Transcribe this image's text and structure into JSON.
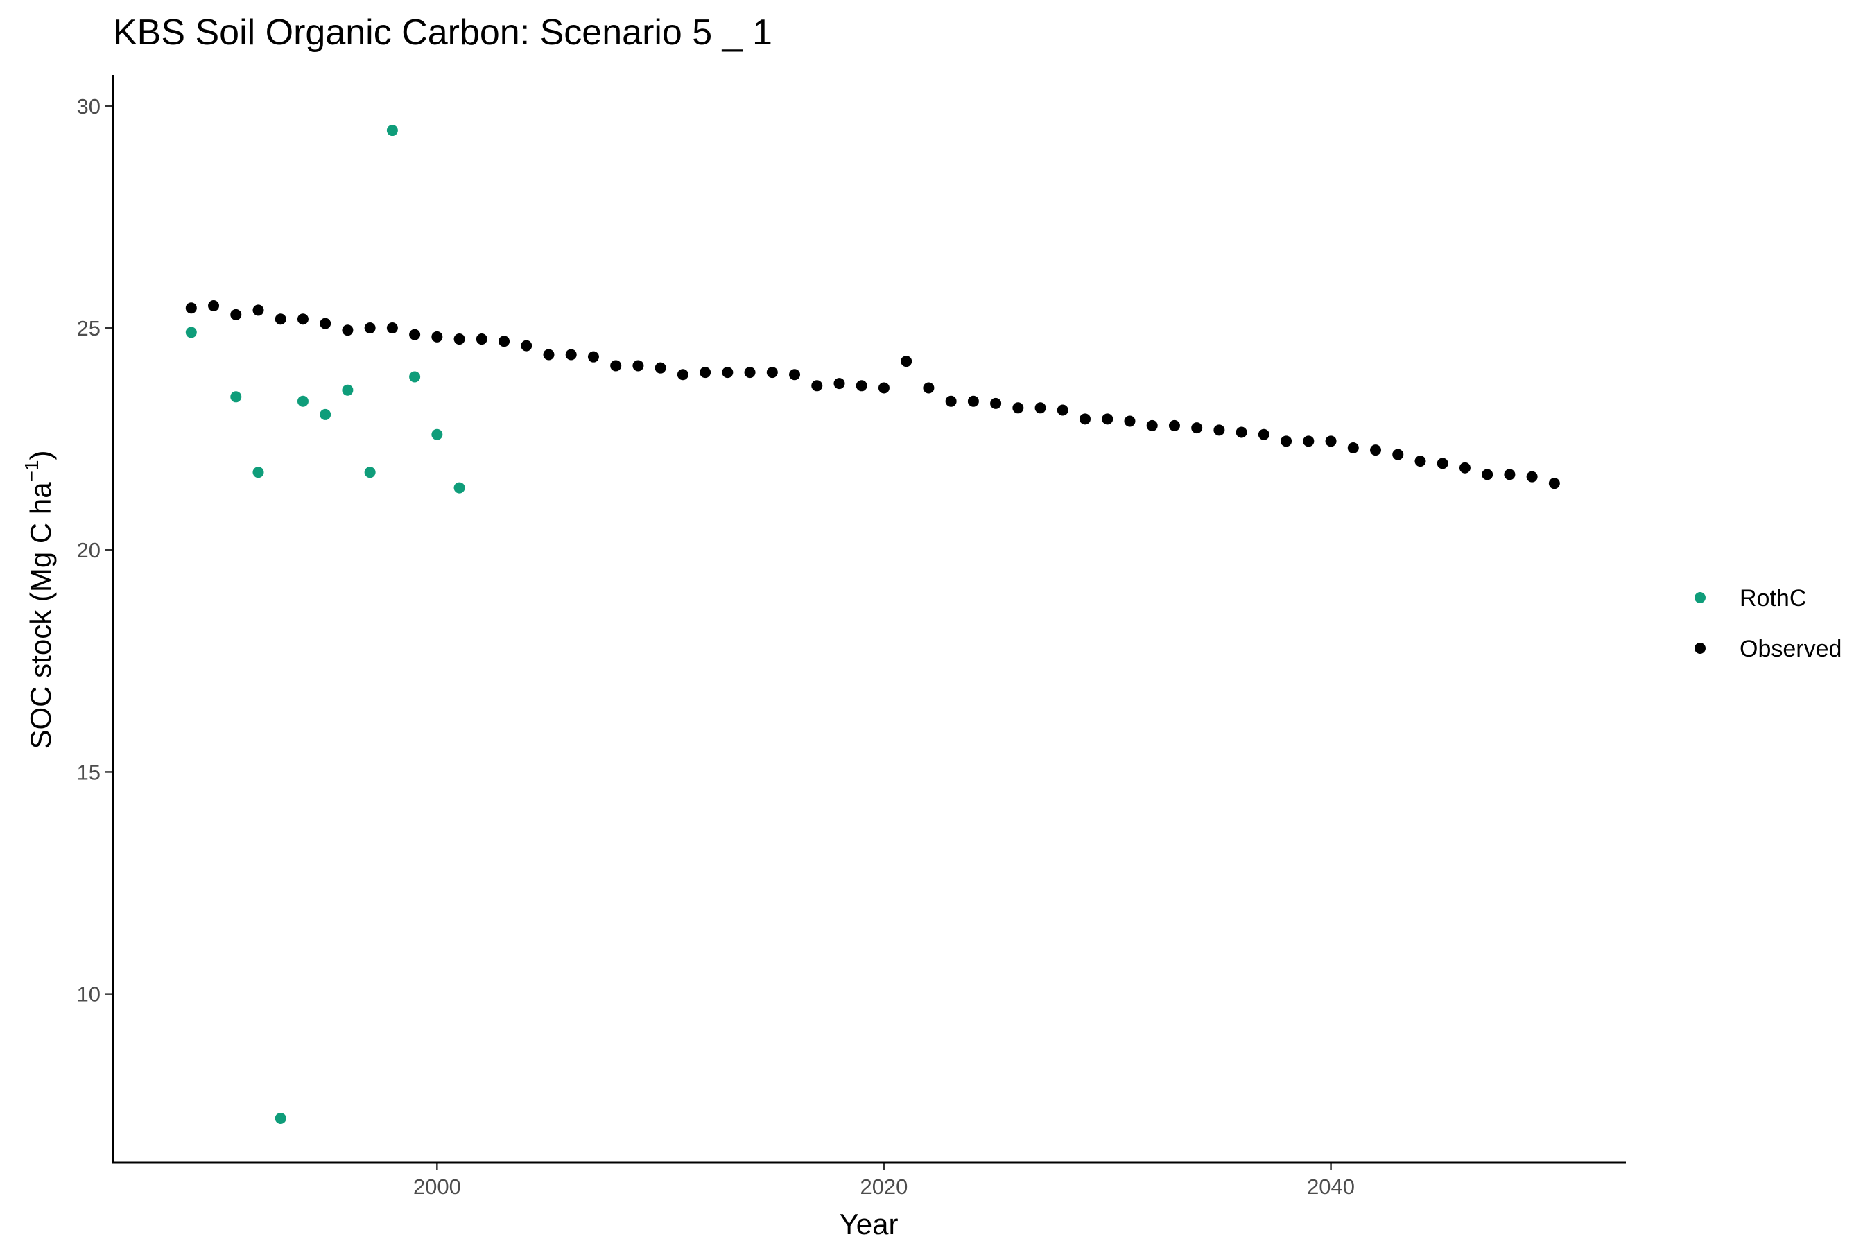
{
  "chart_data": {
    "type": "scatter",
    "title": "KBS Soil Organic Carbon: Scenario  5 _ 1",
    "xlabel": "Year",
    "ylabel": "SOC stock (Mg C ha",
    "ylabel_unit_exponent": "−1",
    "ylabel_close": ")",
    "xlim": [
      1985.5,
      2053.2
    ],
    "ylim": [
      6.2,
      30.7
    ],
    "xticks": [
      2000,
      2020,
      2040
    ],
    "yticks": [
      10,
      15,
      20,
      25,
      30
    ],
    "grid": false,
    "legend_position": "right",
    "series": [
      {
        "name": "RothC",
        "color": "#0f9d7a",
        "points": [
          {
            "x": 1989,
            "y": 24.9
          },
          {
            "x": 1991,
            "y": 23.45
          },
          {
            "x": 1992,
            "y": 21.75
          },
          {
            "x": 1993,
            "y": 7.2
          },
          {
            "x": 1994,
            "y": 23.35
          },
          {
            "x": 1995,
            "y": 23.05
          },
          {
            "x": 1996,
            "y": 23.6
          },
          {
            "x": 1997,
            "y": 21.75
          },
          {
            "x": 1998,
            "y": 29.45
          },
          {
            "x": 1999,
            "y": 23.9
          },
          {
            "x": 2000,
            "y": 22.6
          },
          {
            "x": 2001,
            "y": 21.4
          }
        ]
      },
      {
        "name": "Observed",
        "color": "#000000",
        "points": [
          {
            "x": 1989,
            "y": 25.45
          },
          {
            "x": 1990,
            "y": 25.5
          },
          {
            "x": 1991,
            "y": 25.3
          },
          {
            "x": 1992,
            "y": 25.4
          },
          {
            "x": 1993,
            "y": 25.2
          },
          {
            "x": 1994,
            "y": 25.2
          },
          {
            "x": 1995,
            "y": 25.1
          },
          {
            "x": 1996,
            "y": 24.95
          },
          {
            "x": 1997,
            "y": 25.0
          },
          {
            "x": 1998,
            "y": 25.0
          },
          {
            "x": 1999,
            "y": 24.85
          },
          {
            "x": 2000,
            "y": 24.8
          },
          {
            "x": 2001,
            "y": 24.75
          },
          {
            "x": 2002,
            "y": 24.75
          },
          {
            "x": 2003,
            "y": 24.7
          },
          {
            "x": 2004,
            "y": 24.6
          },
          {
            "x": 2005,
            "y": 24.4
          },
          {
            "x": 2006,
            "y": 24.4
          },
          {
            "x": 2007,
            "y": 24.35
          },
          {
            "x": 2008,
            "y": 24.15
          },
          {
            "x": 2009,
            "y": 24.15
          },
          {
            "x": 2010,
            "y": 24.1
          },
          {
            "x": 2011,
            "y": 23.95
          },
          {
            "x": 2012,
            "y": 24.0
          },
          {
            "x": 2013,
            "y": 24.0
          },
          {
            "x": 2014,
            "y": 24.0
          },
          {
            "x": 2015,
            "y": 24.0
          },
          {
            "x": 2016,
            "y": 23.95
          },
          {
            "x": 2017,
            "y": 23.7
          },
          {
            "x": 2018,
            "y": 23.75
          },
          {
            "x": 2019,
            "y": 23.7
          },
          {
            "x": 2020,
            "y": 23.65
          },
          {
            "x": 2021,
            "y": 24.25
          },
          {
            "x": 2022,
            "y": 23.65
          },
          {
            "x": 2023,
            "y": 23.35
          },
          {
            "x": 2024,
            "y": 23.35
          },
          {
            "x": 2025,
            "y": 23.3
          },
          {
            "x": 2026,
            "y": 23.2
          },
          {
            "x": 2027,
            "y": 23.2
          },
          {
            "x": 2028,
            "y": 23.15
          },
          {
            "x": 2029,
            "y": 22.95
          },
          {
            "x": 2030,
            "y": 22.95
          },
          {
            "x": 2031,
            "y": 22.9
          },
          {
            "x": 2032,
            "y": 22.8
          },
          {
            "x": 2033,
            "y": 22.8
          },
          {
            "x": 2034,
            "y": 22.75
          },
          {
            "x": 2035,
            "y": 22.7
          },
          {
            "x": 2036,
            "y": 22.65
          },
          {
            "x": 2037,
            "y": 22.6
          },
          {
            "x": 2038,
            "y": 22.45
          },
          {
            "x": 2039,
            "y": 22.45
          },
          {
            "x": 2040,
            "y": 22.45
          },
          {
            "x": 2041,
            "y": 22.3
          },
          {
            "x": 2042,
            "y": 22.25
          },
          {
            "x": 2043,
            "y": 22.15
          },
          {
            "x": 2044,
            "y": 22.0
          },
          {
            "x": 2045,
            "y": 21.95
          },
          {
            "x": 2046,
            "y": 21.85
          },
          {
            "x": 2047,
            "y": 21.7
          },
          {
            "x": 2048,
            "y": 21.7
          },
          {
            "x": 2049,
            "y": 21.65
          },
          {
            "x": 2050,
            "y": 21.5
          }
        ]
      }
    ]
  }
}
